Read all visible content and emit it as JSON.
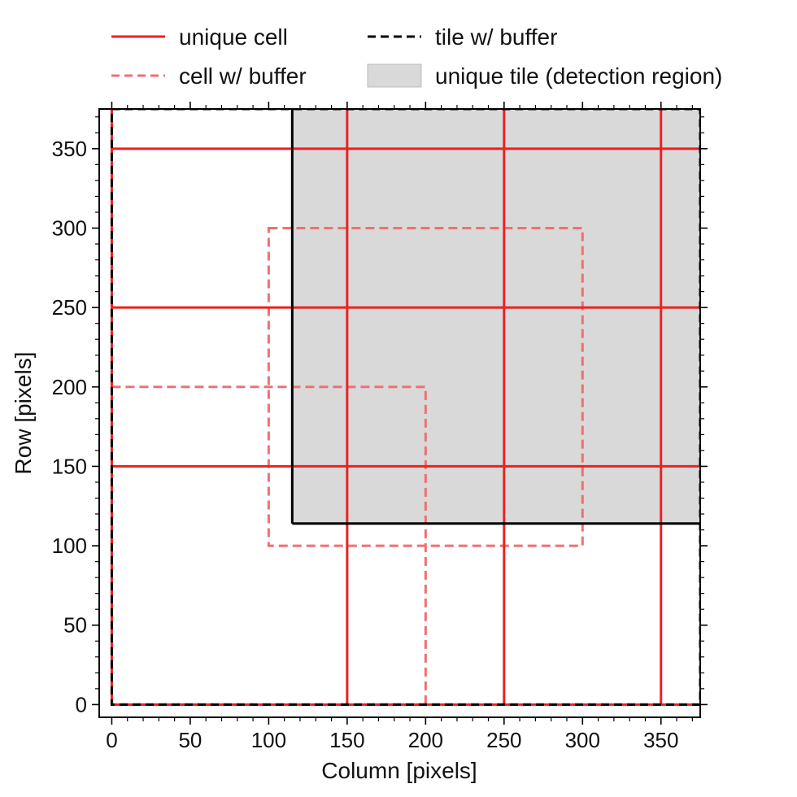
{
  "chart_data": {
    "type": "line",
    "title": "",
    "xlabel": "Column [pixels]",
    "ylabel": "Row [pixels]",
    "xlim": [
      -8,
      375
    ],
    "ylim": [
      -8,
      375
    ],
    "xticks": [
      0,
      50,
      100,
      150,
      200,
      250,
      300,
      350
    ],
    "yticks": [
      0,
      50,
      100,
      150,
      200,
      250,
      300,
      350
    ],
    "minor_tick_step": 10,
    "grid": false,
    "legend": {
      "placement": "top, outside plot, two columns",
      "entries": [
        {
          "key": "unique_cell",
          "label": "unique cell",
          "style": "solid",
          "color": "#ee2020"
        },
        {
          "key": "cell_buffer",
          "label": "cell w/ buffer",
          "style": "dashed",
          "color": "#f07070"
        },
        {
          "key": "tile_buffer",
          "label": "tile w/ buffer",
          "style": "dashed",
          "color": "#000000"
        },
        {
          "key": "unique_tile",
          "label": "unique tile (detection region)",
          "style": "filled",
          "color": "#d9d9d9"
        }
      ]
    },
    "unique_tile": {
      "x0": 115,
      "y0": 114,
      "x1": 375,
      "y1": 375,
      "fill": "#d9d9d9",
      "edge": "#000000"
    },
    "tile_buffer": {
      "x0": 0,
      "y0": 0,
      "x1": 375,
      "y1": 375,
      "color": "#000000"
    },
    "unique_cell": {
      "color": "#ee2020",
      "vertical_x": [
        0,
        150,
        250,
        350
      ],
      "horizontal_y": [
        0,
        150,
        250,
        350
      ],
      "x_extent": [
        0,
        375
      ],
      "y_extent": [
        0,
        375
      ]
    },
    "cell_buffer": {
      "color": "#f07070",
      "rects": [
        {
          "x0": 0,
          "y0": 0,
          "x1": 200,
          "y1": 200
        },
        {
          "x0": 100,
          "y0": 100,
          "x1": 300,
          "y1": 300
        }
      ]
    }
  }
}
